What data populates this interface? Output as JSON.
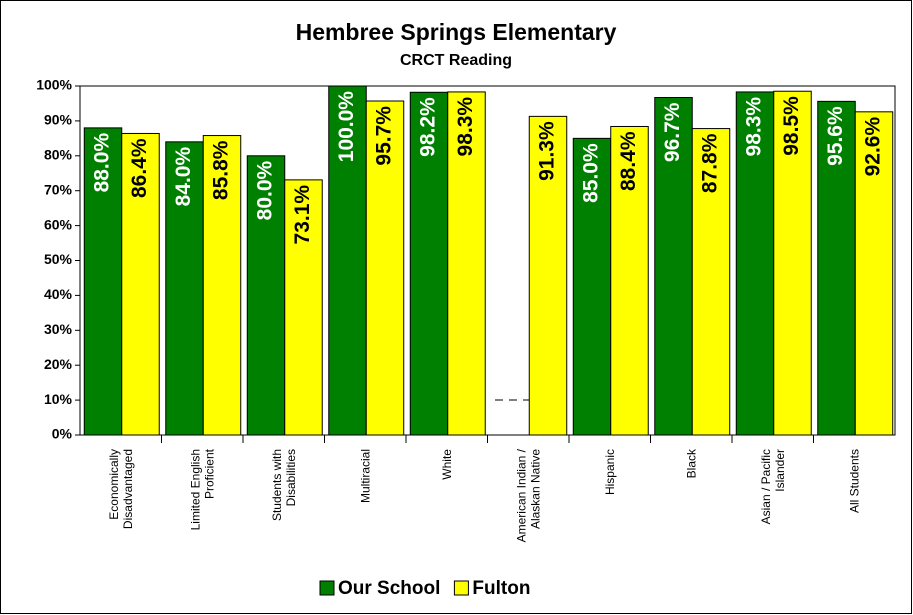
{
  "chart_data": {
    "type": "bar",
    "title": "Hembree Springs Elementary",
    "subtitle": "CRCT Reading",
    "categories": [
      [
        "Economically",
        "Disadvantaged"
      ],
      [
        "Limited English",
        "Proficient"
      ],
      [
        "Students with",
        "Disabilities"
      ],
      [
        "Multiracial"
      ],
      [
        "White"
      ],
      [
        "American Indian /",
        "Alaskan Native"
      ],
      [
        "Hispanic"
      ],
      [
        "Black"
      ],
      [
        "Asian / Pacific",
        "Islander"
      ],
      [
        "All Students"
      ]
    ],
    "series": [
      {
        "name": "Our School",
        "color": "#008000",
        "label_color": "#ffffff",
        "values": [
          88.0,
          84.0,
          80.0,
          100.0,
          98.2,
          null,
          85.0,
          96.7,
          98.3,
          95.6
        ],
        "value_labels": [
          "88.0%",
          "84.0%",
          "80.0%",
          "100.0%",
          "98.2%",
          null,
          "85.0%",
          "96.7%",
          "98.3%",
          "95.6%"
        ]
      },
      {
        "name": "Fulton",
        "color": "#ffff00",
        "label_color": "#000000",
        "values": [
          86.4,
          85.8,
          73.1,
          95.7,
          98.3,
          91.3,
          88.4,
          87.8,
          98.5,
          92.6
        ],
        "value_labels": [
          "86.4%",
          "85.8%",
          "73.1%",
          "95.7%",
          "98.3%",
          "91.3%",
          "88.4%",
          "87.8%",
          "98.5%",
          "92.6%"
        ]
      }
    ],
    "ylim": [
      0,
      100
    ],
    "yticks": [
      {
        "value": 0,
        "label": "0%"
      },
      {
        "value": 10,
        "label": "10%"
      },
      {
        "value": 20,
        "label": "20%"
      },
      {
        "value": 30,
        "label": "30%"
      },
      {
        "value": 40,
        "label": "40%"
      },
      {
        "value": 50,
        "label": "50%"
      },
      {
        "value": 60,
        "label": "60%"
      },
      {
        "value": 70,
        "label": "70%"
      },
      {
        "value": 80,
        "label": "80%"
      },
      {
        "value": 90,
        "label": "90%"
      },
      {
        "value": 100,
        "label": "100%"
      }
    ],
    "grid": false,
    "legend": "bottom"
  }
}
